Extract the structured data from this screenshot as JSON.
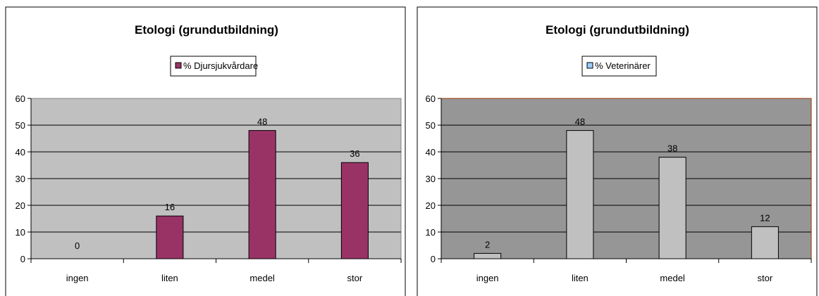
{
  "chart_data": [
    {
      "type": "bar",
      "title": "Etologi (grundutbildning)",
      "categories": [
        "ingen",
        "liten",
        "medel",
        "stor"
      ],
      "series": [
        {
          "name": "% Djursjukvårdare",
          "values": [
            0,
            16,
            48,
            36
          ],
          "color": "#993366"
        }
      ],
      "ylim": [
        0,
        60
      ],
      "yticks": [
        "0",
        "10",
        "20",
        "30",
        "40",
        "50",
        "60"
      ],
      "grid": true,
      "legend_position": "top-center",
      "plot_background": "#c0c0c0",
      "plot_border": "#808080"
    },
    {
      "type": "bar",
      "title": "Etologi (grundutbildning)",
      "categories": [
        "ingen",
        "liten",
        "medel",
        "stor"
      ],
      "series": [
        {
          "name": "% Veterinärer",
          "values": [
            2,
            48,
            38,
            12
          ],
          "color": "#c0c0c0"
        }
      ],
      "ylim": [
        0,
        60
      ],
      "yticks": [
        "0",
        "10",
        "20",
        "30",
        "40",
        "50",
        "60"
      ],
      "grid": true,
      "legend_position": "top-center",
      "plot_background": "#969696",
      "plot_border": "#993300",
      "legend_swatch": "#99ccff"
    }
  ]
}
